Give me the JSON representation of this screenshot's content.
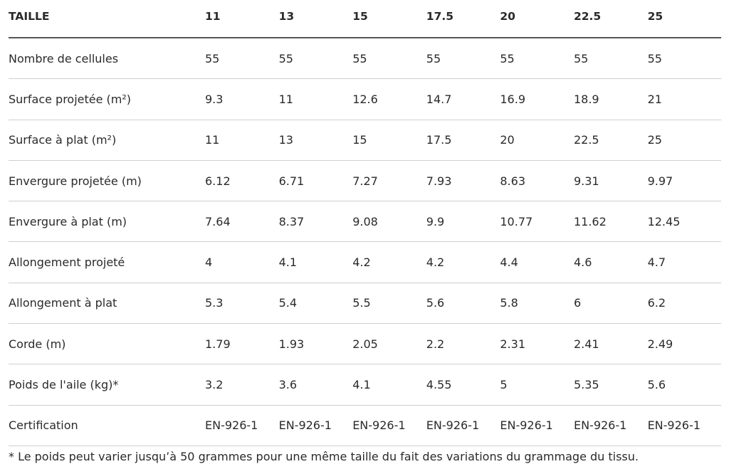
{
  "table": {
    "header": [
      "TAILLE",
      11,
      13,
      15,
      17.5,
      20,
      22.5,
      25
    ],
    "rows": [
      [
        "Nombre de cellules",
        55,
        55,
        55,
        55,
        55,
        55,
        55
      ],
      [
        "Surface projetée (m²)",
        9.3,
        11,
        12.6,
        14.7,
        16.9,
        18.9,
        21
      ],
      [
        "Surface à plat (m²)",
        11,
        13,
        15,
        17.5,
        20,
        22.5,
        25
      ],
      [
        "Envergure projetée (m)",
        6.12,
        6.71,
        7.27,
        7.93,
        8.63,
        9.31,
        9.97
      ],
      [
        "Envergure à plat (m)",
        7.64,
        8.37,
        9.08,
        9.9,
        10.77,
        11.62,
        12.45
      ],
      [
        "Allongement projeté",
        4,
        4.1,
        4.2,
        4.2,
        4.4,
        4.6,
        4.7
      ],
      [
        "Allongement à plat",
        5.3,
        5.4,
        5.5,
        5.6,
        5.8,
        6,
        6.2
      ],
      [
        "Corde (m)",
        1.79,
        1.93,
        2.05,
        2.2,
        2.31,
        2.41,
        2.49
      ],
      [
        "Poids de l'aile (kg)*",
        3.2,
        3.6,
        4.1,
        4.55,
        5,
        5.35,
        5.6
      ],
      [
        "Certification",
        "EN-926-1",
        "EN-926-1",
        "EN-926-1",
        "EN-926-1",
        "EN-926-1",
        "EN-926-1",
        "EN-926-1"
      ]
    ]
  },
  "footnote": "* Le poids peut varier jusqu’à 50 grammes pour une même taille du fait des variations du grammage du tissu."
}
